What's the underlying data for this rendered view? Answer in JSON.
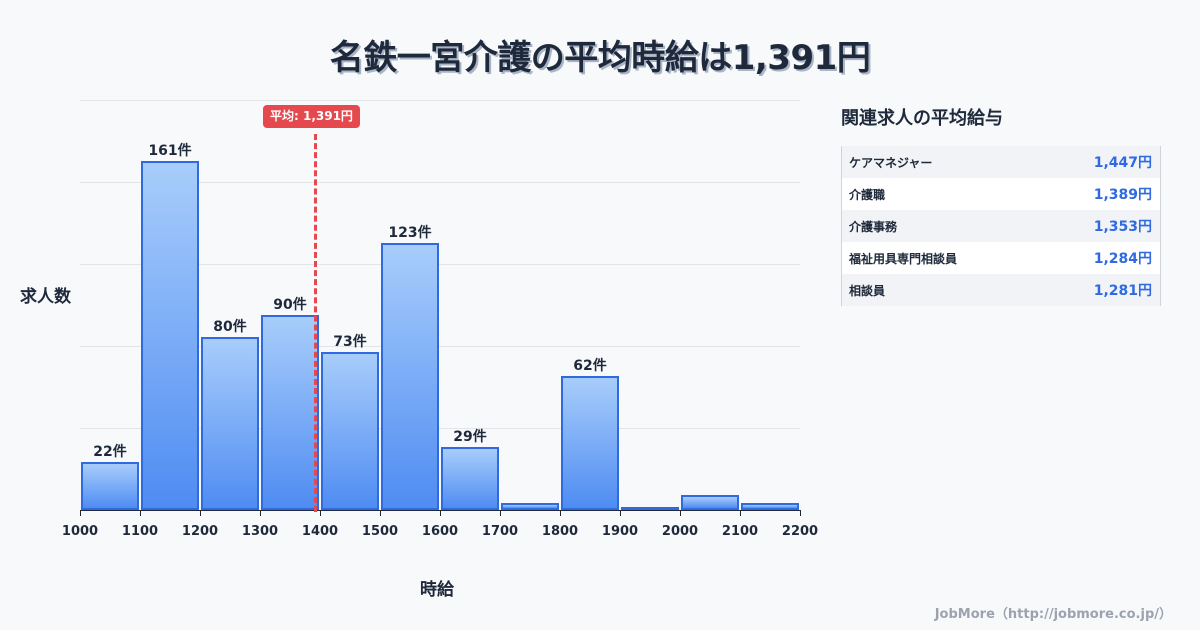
{
  "title": "名鉄一宮介護の平均時給は1,391円",
  "chart_data": {
    "type": "bar",
    "title": "名鉄一宮介護の平均時給は1,391円",
    "xlabel": "時給",
    "ylabel": "求人数",
    "x_ticks": [
      "1000",
      "1100",
      "1200",
      "1300",
      "1400",
      "1500",
      "1600",
      "1700",
      "1800",
      "1900",
      "2000",
      "2100",
      "2200"
    ],
    "categories": [
      "1000-1100",
      "1100-1200",
      "1200-1300",
      "1300-1400",
      "1400-1500",
      "1500-1600",
      "1600-1700",
      "1700-1800",
      "1800-1900",
      "1900-2000",
      "2000-2100",
      "2100-2200"
    ],
    "values": [
      22,
      161,
      80,
      90,
      73,
      123,
      29,
      3,
      62,
      1,
      7,
      3
    ],
    "labels": [
      "22件",
      "161件",
      "80件",
      "90件",
      "73件",
      "123件",
      "29件",
      "",
      "62件",
      "",
      "",
      ""
    ],
    "average": 1391,
    "average_label": "平均: 1,391円",
    "grid": true,
    "xlim": [
      1000,
      2200
    ]
  },
  "sidebar": {
    "title": "関連求人の平均給与",
    "rows": [
      {
        "name": "ケアマネジャー",
        "value": "1,447円"
      },
      {
        "name": "介護職",
        "value": "1,389円"
      },
      {
        "name": "介護事務",
        "value": "1,353円"
      },
      {
        "name": "福祉用具専門相談員",
        "value": "1,284円"
      },
      {
        "name": "相談員",
        "value": "1,281円"
      }
    ]
  },
  "footer": "JobMore（http://jobmore.co.jp/）",
  "colors": {
    "bar": "#4f8cf2",
    "bar_border": "#2f6ae0",
    "average": "#e5484d",
    "value_text": "#2f6ae0"
  }
}
